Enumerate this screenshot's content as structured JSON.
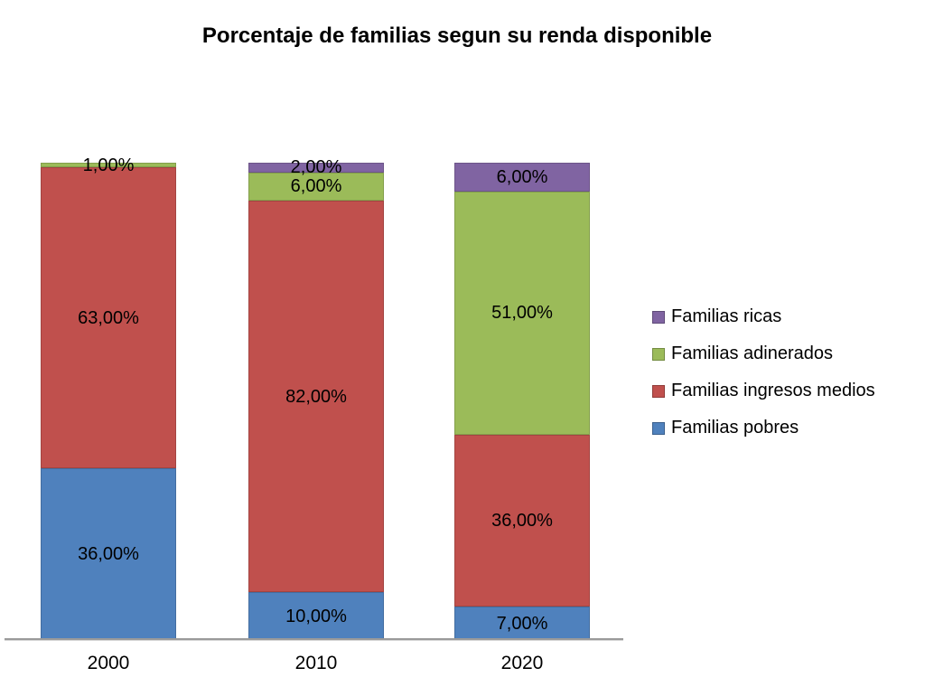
{
  "page": {
    "background": "#FFFFFF"
  },
  "chart_data": {
    "type": "bar",
    "stacked": true,
    "title": "Porcentaje de familias segun su renda disponible",
    "categories": [
      "2000",
      "2010",
      "2020"
    ],
    "series": [
      {
        "name": "Familias pobres",
        "color": "#4F81BD",
        "values": [
          36,
          10,
          7
        ],
        "labels": [
          "36,00%",
          "10,00%",
          "7,00%"
        ]
      },
      {
        "name": "Familias ingresos medios",
        "color": "#C0504D",
        "values": [
          63,
          82,
          36
        ],
        "labels": [
          "63,00%",
          "82,00%",
          "36,00%"
        ]
      },
      {
        "name": "Familias adinerados",
        "color": "#9BBB59",
        "values": [
          1,
          6,
          51
        ],
        "labels": [
          "1,00%",
          "6,00%",
          "51,00%"
        ]
      },
      {
        "name": "Familias ricas",
        "color": "#8064A2",
        "values": [
          0,
          2,
          6
        ],
        "labels": [
          "",
          "2,00%",
          "6,00%"
        ]
      }
    ],
    "legend": [
      {
        "label": "Familias ricas",
        "series_index": 3
      },
      {
        "label": "Familias adinerados",
        "series_index": 2
      },
      {
        "label": "Familias ingresos medios",
        "series_index": 1
      },
      {
        "label": "Familias pobres",
        "series_index": 0
      }
    ],
    "legend_position": "right",
    "value_format": "percent-comma-2dp",
    "ylim": [
      0,
      100
    ],
    "grid": false,
    "axis_color": "#9A9A9A",
    "label_color": "#000000"
  }
}
